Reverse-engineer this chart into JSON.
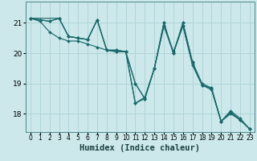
{
  "bg_color": "#cce8ea",
  "grid_color": "#b0d4d8",
  "line_color": "#1a6b6b",
  "xlabel": "Humidex (Indice chaleur)",
  "xlabel_fontsize": 7.5,
  "yticks": [
    18,
    19,
    20,
    21
  ],
  "xticks": [
    0,
    1,
    2,
    3,
    4,
    5,
    6,
    7,
    8,
    9,
    10,
    11,
    12,
    13,
    14,
    15,
    16,
    17,
    18,
    19,
    20,
    21,
    22,
    23
  ],
  "xlim": [
    -0.5,
    23.5
  ],
  "ylim": [
    17.4,
    21.7
  ],
  "lines": [
    {
      "x": [
        0,
        1,
        2,
        3,
        4,
        5,
        6,
        7,
        8,
        9,
        10,
        11,
        12,
        13,
        14,
        15,
        16,
        17,
        18,
        19,
        20,
        21,
        22,
        23
      ],
      "y": [
        21.15,
        21.05,
        20.7,
        20.5,
        20.4,
        20.4,
        20.3,
        20.2,
        20.1,
        20.05,
        20.05,
        18.35,
        18.55,
        19.5,
        20.9,
        20.0,
        20.9,
        19.6,
        18.95,
        18.8,
        17.75,
        18.0,
        17.8,
        17.5
      ]
    },
    {
      "x": [
        0,
        1,
        2,
        3,
        4,
        5,
        6,
        7,
        8,
        9,
        10,
        11,
        12,
        13,
        14,
        15,
        16,
        17,
        18,
        19,
        20,
        21,
        22,
        23
      ],
      "y": [
        21.15,
        21.1,
        21.05,
        21.15,
        20.55,
        20.5,
        20.45,
        21.1,
        20.1,
        20.1,
        20.05,
        19.0,
        18.5,
        19.5,
        20.9,
        20.05,
        20.9,
        19.65,
        18.95,
        18.8,
        17.75,
        18.05,
        17.8,
        17.5
      ]
    },
    {
      "x": [
        0,
        1,
        2,
        3,
        4,
        5,
        6,
        7,
        8,
        9,
        10,
        11,
        12,
        13,
        14,
        15,
        16,
        17,
        18,
        19,
        20,
        21,
        22,
        23
      ],
      "y": [
        21.15,
        21.1,
        21.05,
        21.15,
        20.55,
        20.5,
        20.45,
        21.1,
        20.1,
        20.1,
        20.05,
        18.35,
        18.5,
        19.5,
        21.0,
        20.0,
        21.0,
        19.7,
        18.95,
        18.85,
        17.75,
        18.05,
        17.8,
        17.5
      ]
    },
    {
      "x": [
        0,
        3,
        4,
        5,
        6,
        7,
        8,
        9,
        10,
        11,
        12,
        13,
        14,
        15,
        16,
        17,
        18,
        19,
        20,
        21,
        22,
        23
      ],
      "y": [
        21.15,
        21.15,
        20.55,
        20.5,
        20.45,
        21.1,
        20.1,
        20.05,
        20.05,
        19.0,
        18.5,
        19.5,
        21.0,
        20.0,
        21.0,
        19.7,
        19.0,
        18.85,
        17.75,
        18.1,
        17.85,
        17.5
      ]
    }
  ]
}
